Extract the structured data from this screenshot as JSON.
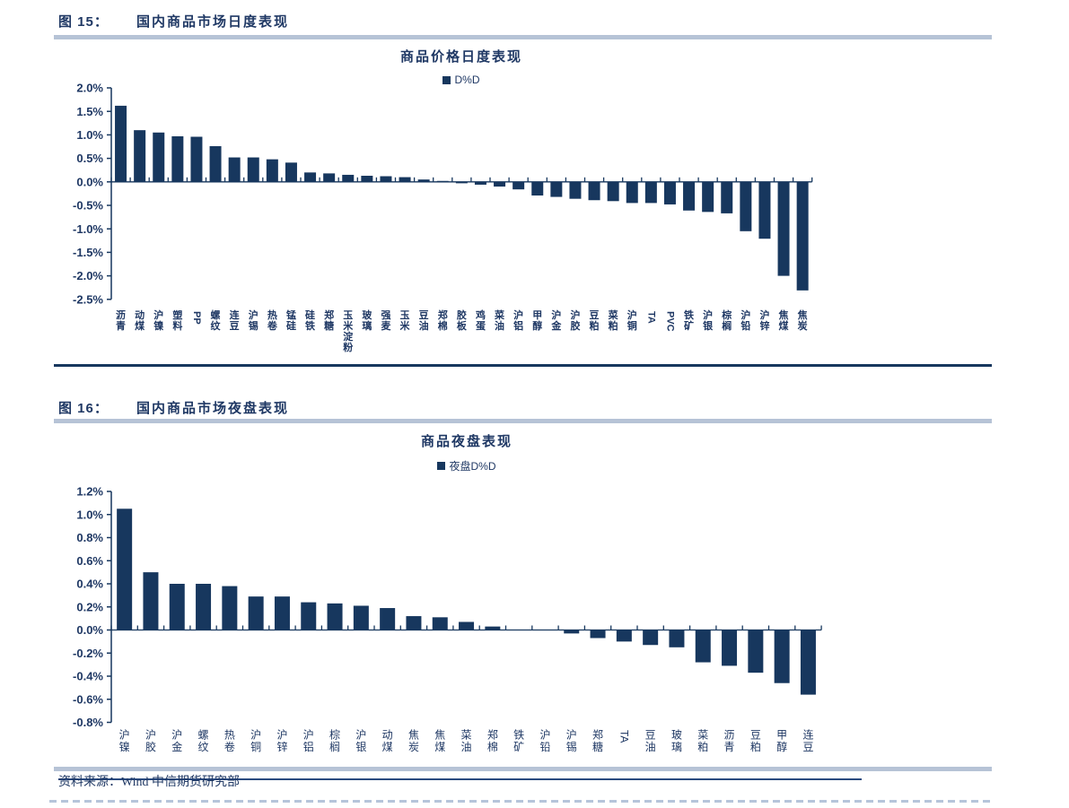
{
  "figures": [
    {
      "caption_label": "图 15：",
      "caption_title": "国内商品市场日度表现"
    },
    {
      "caption_label": "图 16：",
      "caption_title": "国内商品市场夜盘表现"
    }
  ],
  "footer": {
    "source": "资料来源：Wind 中信期货研究部"
  },
  "colors": {
    "bar": "#17375e",
    "text": "#1f3864",
    "divider": "#b6c3d6",
    "dashed_rule": "#b6c5da"
  },
  "chart_data": [
    {
      "type": "bar",
      "title": "商品价格日度表现",
      "legend": [
        "D%D"
      ],
      "legend_position": "top",
      "xlabel": "",
      "ylabel": "",
      "ylim": [
        -2.5,
        2.0
      ],
      "ytick_step": 0.5,
      "ytick_format": "0.0%",
      "grid": false,
      "bar_color": "#17375e",
      "categories": [
        "沥青",
        "动煤",
        "沪镍",
        "塑料",
        "PP",
        "螺纹",
        "连豆",
        "沪锡",
        "热卷",
        "锰硅",
        "硅铁",
        "郑糖",
        "玉米淀粉",
        "玻璃",
        "强麦",
        "玉米",
        "豆油",
        "郑棉",
        "胶板",
        "鸡蛋",
        "菜油",
        "沪铝",
        "甲醇",
        "沪金",
        "沪胶",
        "豆粕",
        "菜粕",
        "沪铜",
        "TA",
        "PVC",
        "铁矿",
        "沪银",
        "棕榈",
        "沪铅",
        "沪锌",
        "焦煤",
        "焦炭"
      ],
      "values": [
        1.62,
        1.1,
        1.05,
        0.97,
        0.96,
        0.76,
        0.52,
        0.52,
        0.48,
        0.41,
        0.2,
        0.18,
        0.15,
        0.13,
        0.12,
        0.1,
        0.05,
        0.02,
        -0.03,
        -0.06,
        -0.1,
        -0.16,
        -0.29,
        -0.32,
        -0.36,
        -0.39,
        -0.41,
        -0.45,
        -0.45,
        -0.48,
        -0.61,
        -0.64,
        -0.67,
        -1.05,
        -1.21,
        -2.0,
        -2.31
      ]
    },
    {
      "type": "bar",
      "title": "商品夜盘表现",
      "legend": [
        "夜盘D%D"
      ],
      "legend_position": "top",
      "xlabel": "",
      "ylabel": "",
      "ylim": [
        -0.8,
        1.2
      ],
      "ytick_step": 0.2,
      "ytick_format": "0.0%",
      "grid": false,
      "bar_color": "#17375e",
      "categories": [
        "沪镍",
        "沪胶",
        "沪金",
        "螺纹",
        "热卷",
        "沪铜",
        "沪锌",
        "沪铝",
        "棕榈",
        "沪银",
        "动煤",
        "焦炭",
        "焦煤",
        "菜油",
        "郑棉",
        "铁矿",
        "沪铅",
        "沪锡",
        "郑糖",
        "TA",
        "豆油",
        "玻璃",
        "菜粕",
        "沥青",
        "豆粕",
        "甲醇",
        "连豆"
      ],
      "values": [
        1.05,
        0.5,
        0.4,
        0.4,
        0.38,
        0.29,
        0.29,
        0.24,
        0.23,
        0.21,
        0.19,
        0.12,
        0.11,
        0.07,
        0.03,
        0.0,
        0.0,
        -0.03,
        -0.07,
        -0.1,
        -0.13,
        -0.15,
        -0.28,
        -0.31,
        -0.37,
        -0.46,
        -0.56
      ]
    }
  ]
}
